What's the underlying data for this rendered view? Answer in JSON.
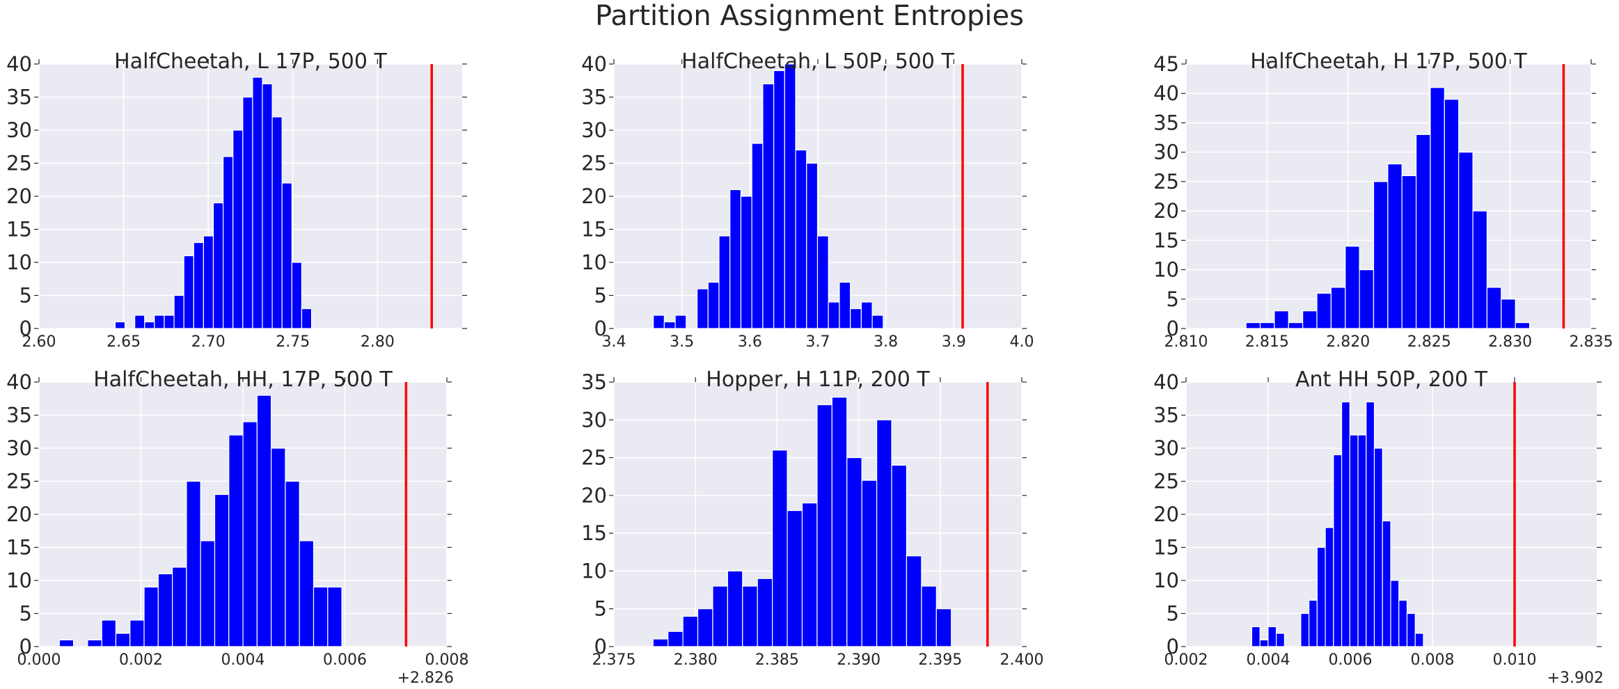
{
  "figure": {
    "title": "Partition Assignment Entropies"
  },
  "chart_data": [
    {
      "type": "bar",
      "title": "HalfCheetah, L 17P, 500 T",
      "xlim": [
        2.6,
        2.85
      ],
      "ylim": [
        0,
        40
      ],
      "xticks": [
        "2.60",
        "2.65",
        "2.70",
        "2.75",
        "2.80"
      ],
      "yticks": [
        "0",
        "5",
        "10",
        "15",
        "20",
        "25",
        "30",
        "35",
        "40"
      ],
      "offset_label": "",
      "bin_start": 2.645,
      "bin_width": 0.0058,
      "counts": [
        1,
        0,
        2,
        1,
        2,
        2,
        5,
        11,
        13,
        14,
        19,
        26,
        30,
        35,
        38,
        37,
        32,
        22,
        10,
        3
      ],
      "marker_x": 2.832,
      "grid": true
    },
    {
      "type": "bar",
      "title": "HalfCheetah, L 50P, 500 T",
      "xlim": [
        3.4,
        4.0
      ],
      "ylim": [
        0,
        40
      ],
      "xticks": [
        "3.4",
        "3.5",
        "3.6",
        "3.7",
        "3.8",
        "3.9",
        "4.0"
      ],
      "yticks": [
        "0",
        "5",
        "10",
        "15",
        "20",
        "25",
        "30",
        "35",
        "40"
      ],
      "offset_label": "",
      "bin_start": 3.458,
      "bin_width": 0.0161,
      "counts": [
        2,
        1,
        2,
        0,
        6,
        7,
        14,
        21,
        20,
        28,
        37,
        39,
        40,
        27,
        25,
        14,
        4,
        7,
        3,
        4,
        2
      ],
      "marker_x": 3.913,
      "grid": true
    },
    {
      "type": "bar",
      "title": "HalfCheetah, H 17P, 500 T",
      "xlim": [
        2.81,
        2.835
      ],
      "ylim": [
        0,
        45
      ],
      "xticks": [
        "2.810",
        "2.815",
        "2.820",
        "2.825",
        "2.830",
        "2.835"
      ],
      "yticks": [
        "0",
        "5",
        "10",
        "15",
        "20",
        "25",
        "30",
        "35",
        "40",
        "45"
      ],
      "offset_label": "",
      "bin_start": 2.8137,
      "bin_width": 0.000875,
      "counts": [
        1,
        1,
        3,
        1,
        3,
        6,
        7,
        14,
        10,
        25,
        28,
        26,
        33,
        41,
        39,
        30,
        20,
        7,
        5,
        1
      ],
      "marker_x": 2.8333,
      "grid": true
    },
    {
      "type": "bar",
      "title": "HalfCheetah, HH, 17P, 500 T",
      "xlim": [
        0.0,
        0.008
      ],
      "ylim": [
        0,
        40
      ],
      "xticks": [
        "0.000",
        "0.002",
        "0.004",
        "0.006",
        "0.008"
      ],
      "yticks": [
        "0",
        "5",
        "10",
        "15",
        "20",
        "25",
        "30",
        "35",
        "40"
      ],
      "offset_label": "+2.826",
      "bin_start": 0.0004,
      "bin_width": 0.000277,
      "counts": [
        1,
        0,
        1,
        4,
        2,
        4,
        9,
        11,
        12,
        25,
        16,
        23,
        32,
        34,
        38,
        30,
        25,
        16,
        9,
        9
      ],
      "marker_x": 0.0072,
      "grid": true
    },
    {
      "type": "bar",
      "title": "Hopper, H 11P, 200 T",
      "xlim": [
        2.375,
        2.4
      ],
      "ylim": [
        0,
        35
      ],
      "xticks": [
        "2.375",
        "2.380",
        "2.385",
        "2.390",
        "2.395",
        "2.400"
      ],
      "yticks": [
        "0",
        "5",
        "10",
        "15",
        "20",
        "25",
        "30",
        "35"
      ],
      "offset_label": "",
      "bin_start": 2.3774,
      "bin_width": 0.000914,
      "counts": [
        1,
        2,
        4,
        5,
        8,
        10,
        8,
        9,
        26,
        18,
        19,
        32,
        33,
        25,
        22,
        30,
        24,
        12,
        8,
        5
      ],
      "marker_x": 2.3979,
      "grid": true
    },
    {
      "type": "bar",
      "title": "Ant HH 50P, 200 T",
      "xlim": [
        0.002,
        0.012
      ],
      "ylim": [
        0,
        40
      ],
      "xticks": [
        "0.002",
        "0.004",
        "0.006",
        "0.008",
        "0.010"
      ],
      "yticks": [
        "0",
        "5",
        "10",
        "15",
        "20",
        "25",
        "30",
        "35",
        "40"
      ],
      "offset_label": "+3.902",
      "bin_start": 0.0036,
      "bin_width": 0.000199,
      "counts": [
        3,
        1,
        3,
        2,
        0,
        0,
        5,
        7,
        15,
        18,
        29,
        37,
        32,
        32,
        37,
        30,
        19,
        10,
        7,
        5,
        2
      ],
      "marker_x": 0.01,
      "grid": true
    }
  ]
}
